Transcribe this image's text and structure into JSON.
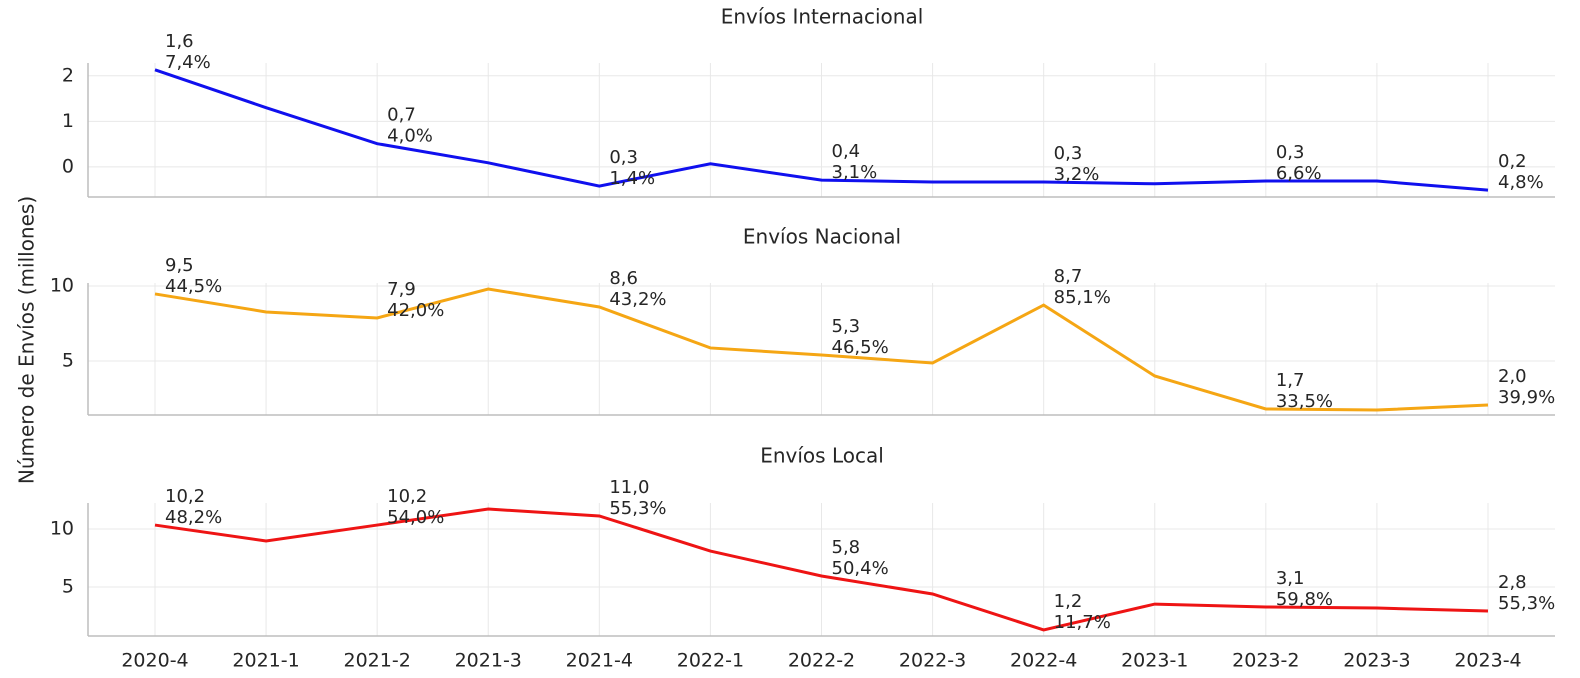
{
  "chart_data": [
    {
      "type": "line",
      "title": "Envíos Internacional",
      "color": "#1010ee",
      "values": [
        2.13,
        1.3,
        0.51,
        0.09,
        -0.42,
        0.07,
        -0.29,
        -0.33,
        -0.33,
        -0.37,
        -0.31,
        -0.31,
        -0.51
      ],
      "annotations": [
        [
          "1,6",
          "7,4%"
        ],
        null,
        [
          "0,7",
          "4,0%"
        ],
        null,
        [
          "0,3",
          "1,4%"
        ],
        null,
        [
          "0,4",
          "3,1%"
        ],
        null,
        [
          "0,3",
          "3,2%"
        ],
        null,
        [
          "0,3",
          "6,6%"
        ],
        null,
        [
          "0,2",
          "4,8%"
        ]
      ],
      "ylim": [
        -0.66,
        2.28
      ],
      "yticks": [
        0,
        1,
        2
      ],
      "grid": true
    },
    {
      "type": "line",
      "title": "Envíos Nacional",
      "color": "#f5a614",
      "ylabel": "Número de Envíos (millones)",
      "values": [
        9.47,
        8.27,
        7.87,
        9.8,
        8.6,
        5.87,
        5.4,
        4.87,
        8.73,
        4.0,
        1.8,
        1.73,
        2.07
      ],
      "annotations": [
        [
          "9,5",
          "44,5%"
        ],
        null,
        [
          "7,9",
          "42,0%"
        ],
        null,
        [
          "8,6",
          "43,2%"
        ],
        null,
        [
          "5,3",
          "46,5%"
        ],
        null,
        [
          "8,7",
          "85,1%"
        ],
        null,
        [
          "1,7",
          "33,5%"
        ],
        null,
        [
          "2,0",
          "39,9%"
        ]
      ],
      "ylim": [
        1.4,
        10.2
      ],
      "yticks": [
        5,
        10
      ],
      "grid": true
    },
    {
      "type": "line",
      "title": "Envíos Local",
      "color": "#ee1414",
      "categories": [
        "2020-4",
        "2021-1",
        "2021-2",
        "2021-3",
        "2021-4",
        "2022-1",
        "2022-2",
        "2022-3",
        "2022-4",
        "2023-1",
        "2023-2",
        "2023-3",
        "2023-4"
      ],
      "values": [
        10.34,
        8.97,
        10.34,
        11.72,
        11.12,
        8.1,
        5.95,
        4.4,
        1.3,
        3.53,
        3.28,
        3.19,
        2.93
      ],
      "annotations": [
        [
          "10,2",
          "48,2%"
        ],
        null,
        [
          "10,2",
          "54,0%"
        ],
        null,
        [
          "11,0",
          "55,3%"
        ],
        null,
        [
          "5,8",
          "50,4%"
        ],
        null,
        [
          "1,2",
          "11,7%"
        ],
        null,
        [
          "3,1",
          "59,8%"
        ],
        null,
        [
          "2,8",
          "55,3%"
        ]
      ],
      "ylim": [
        0.78,
        12.24
      ],
      "yticks": [
        5,
        10
      ],
      "grid": true
    }
  ]
}
